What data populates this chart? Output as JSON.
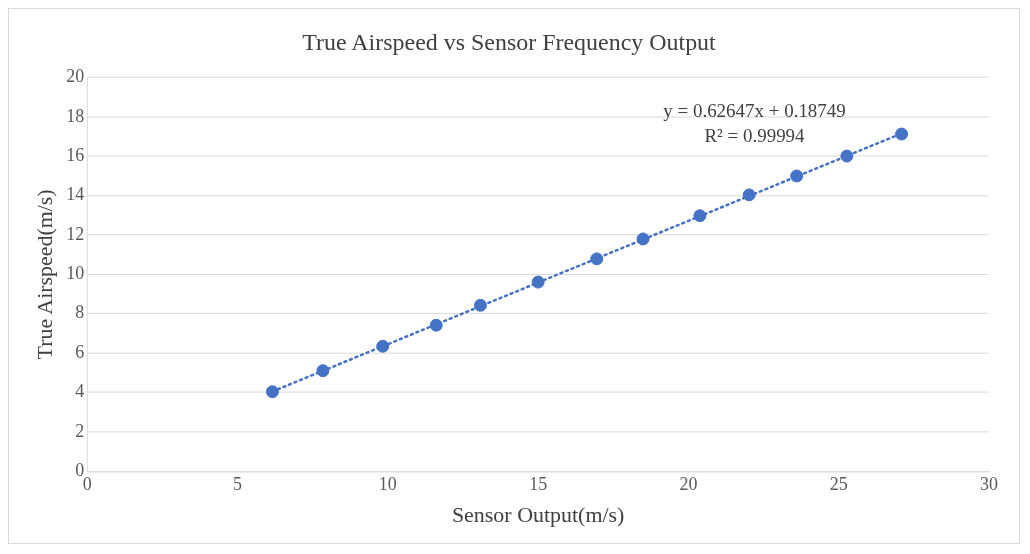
{
  "chart_data": {
    "type": "scatter",
    "title": "True Airspeed vs Sensor Frequency Output",
    "xlabel": "Sensor Output(m/s)",
    "ylabel": "True Airspeed(m/s)",
    "xlim": [
      0,
      30
    ],
    "xticks": [
      0,
      5,
      10,
      15,
      20,
      25,
      30
    ],
    "ylim": [
      0,
      20
    ],
    "yticks": [
      0,
      2,
      4,
      6,
      8,
      10,
      12,
      14,
      16,
      18,
      20
    ],
    "grid": "y",
    "legend": false,
    "series": [
      {
        "marker": "circle",
        "color": "#4472c4",
        "x": [
          6.16,
          7.84,
          9.83,
          11.61,
          13.08,
          15.0,
          16.95,
          18.49,
          20.38,
          22.02,
          23.6,
          25.27,
          27.09
        ],
        "values": [
          4.04,
          5.11,
          6.35,
          7.42,
          8.43,
          9.61,
          10.79,
          11.8,
          12.98,
          14.04,
          15.0,
          16.01,
          17.13
        ]
      },
      {
        "type": "line",
        "marker": "none",
        "color": "#4472c4",
        "line_style": "dotted",
        "x": [
          6.16,
          27.09
        ],
        "values": [
          4.05,
          17.16
        ]
      }
    ],
    "annotations": [
      "y = 0.62647x + 0.18749",
      "R² = 0.99994"
    ]
  }
}
